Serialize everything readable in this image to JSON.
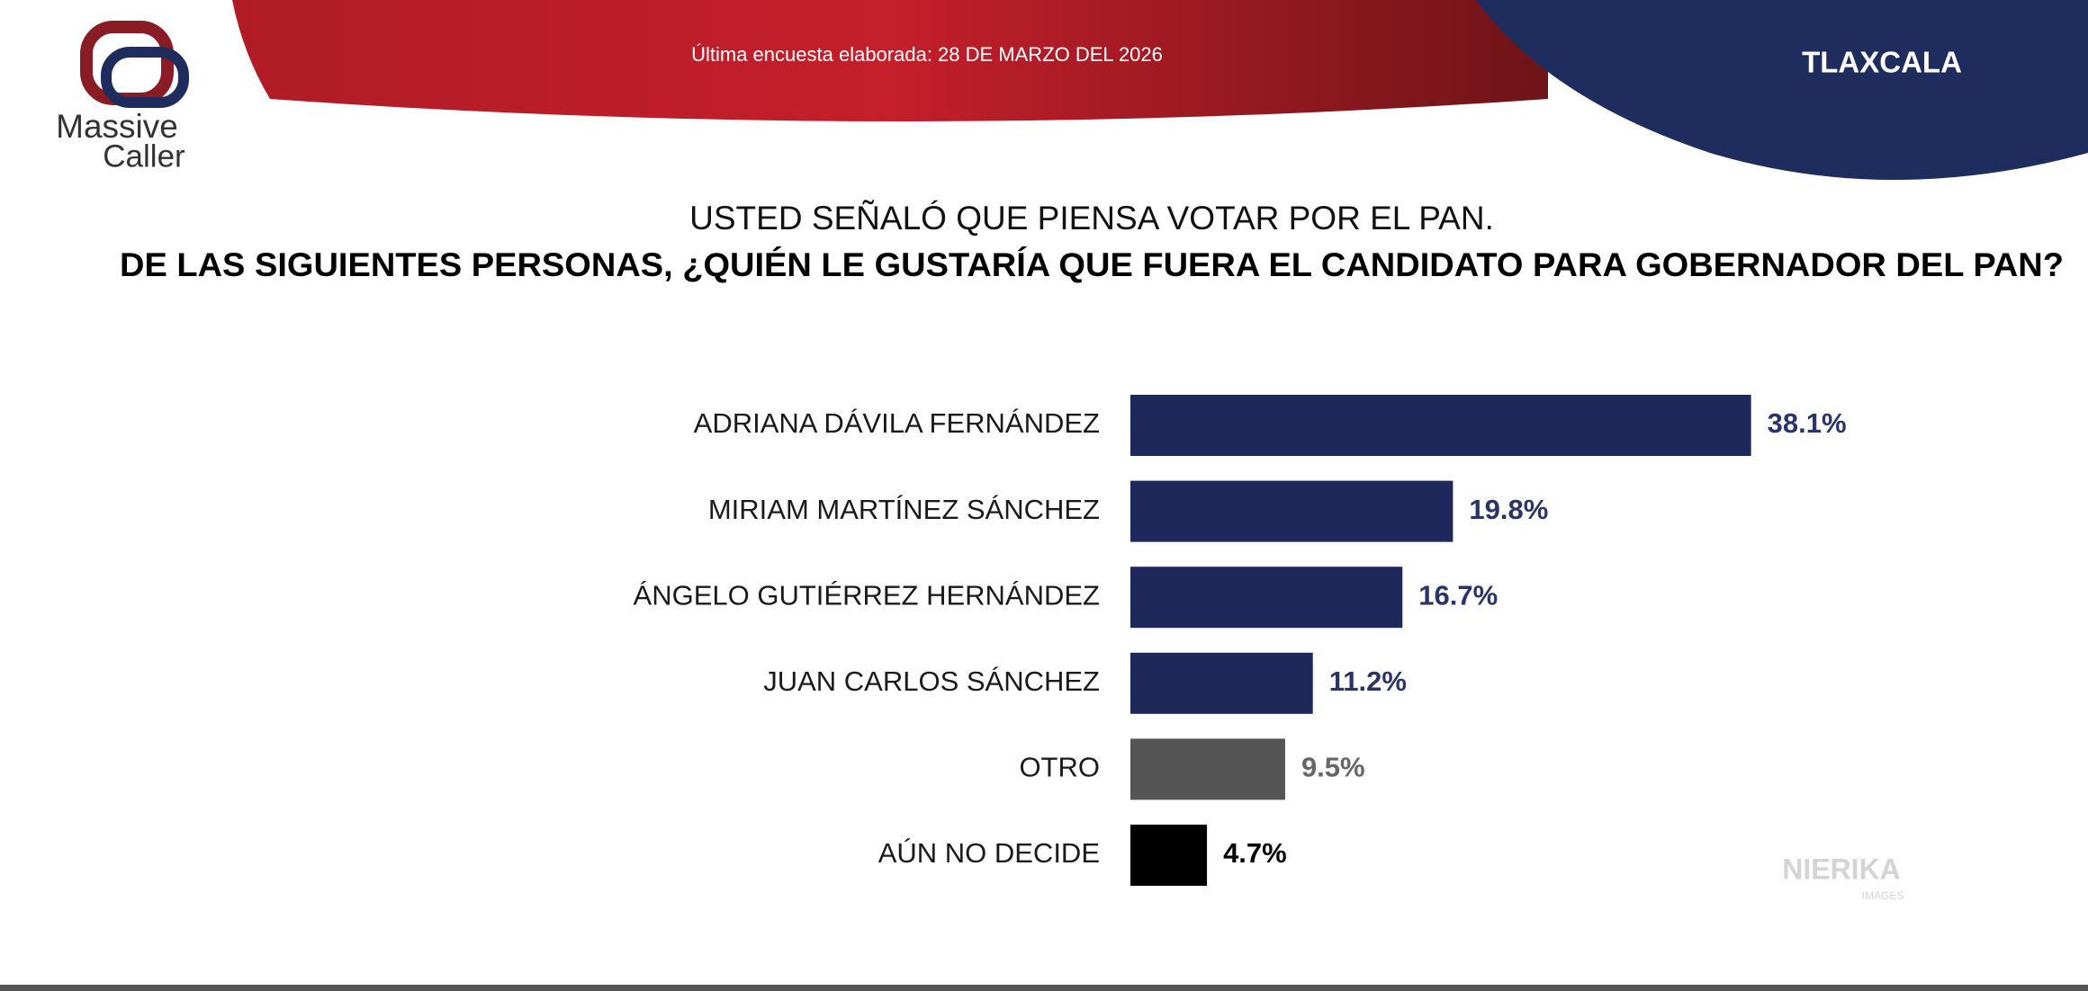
{
  "chart_data": {
    "type": "bar",
    "orientation": "horizontal",
    "logo_name_line1": "Massive",
    "logo_name_line2": "Caller",
    "survey_note": "Última encuesta elaborada: 28 DE MARZO DEL 2026",
    "region": "TLAXCALA",
    "subtitle": "USTED SEÑALÓ QUE PIENSA VOTAR POR EL PAN.",
    "title": "DE LAS SIGUIENTES PERSONAS, ¿QUIÉN LE GUSTARÍA QUE FUERA EL CANDIDATO PARA GOBERNADOR DEL PAN?",
    "categories": [
      "ADRIANA DÁVILA FERNÁNDEZ",
      "MIRIAM MARTÍNEZ SÁNCHEZ",
      "ÁNGELO GUTIÉRREZ HERNÁNDEZ",
      "JUAN CARLOS SÁNCHEZ",
      "OTRO",
      "AÚN NO DECIDE"
    ],
    "values": [
      38.1,
      19.8,
      16.7,
      11.2,
      9.5,
      4.7
    ],
    "value_labels": [
      "38.1%",
      "19.8%",
      "16.7%",
      "11.2%",
      "9.5%",
      "4.7%"
    ],
    "colors": [
      "#1f285b",
      "#1f285b",
      "#1f285b",
      "#1f285b",
      "#555555",
      "#000000"
    ],
    "label_colors": [
      "#2b3466",
      "#2b3466",
      "#2b3466",
      "#2b3466",
      "#666666",
      "#000000"
    ],
    "watermark": "NIERIKA",
    "watermark_sub": "IMAGES"
  }
}
